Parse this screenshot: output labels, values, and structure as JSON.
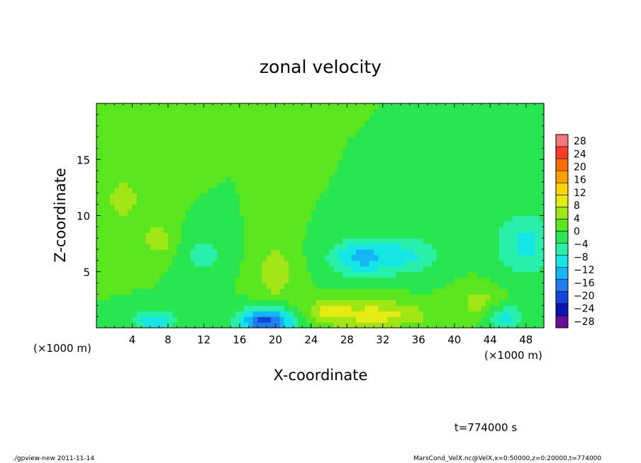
{
  "chart_data": {
    "type": "heatmap",
    "title": "zonal velocity",
    "xlabel": "X-coordinate",
    "ylabel": "Z-coordinate",
    "xlim": [
      0,
      50
    ],
    "ylim": [
      0,
      20
    ],
    "x_ticks": [
      4,
      8,
      12,
      16,
      20,
      24,
      28,
      32,
      36,
      40,
      44,
      48
    ],
    "y_ticks": [
      5,
      10,
      15
    ],
    "x_unit_left": "(×1000 m)",
    "x_unit_right": "(×1000 m)",
    "colorbar": {
      "levels": [
        -30,
        -26,
        -22,
        -18,
        -14,
        -10,
        -6,
        -2,
        2,
        6,
        10,
        14,
        18,
        22,
        26,
        30
      ],
      "colors": [
        "#6a0d9a",
        "#0a14b4",
        "#1446dc",
        "#1e7ef0",
        "#14b4f5",
        "#14e6e6",
        "#28f0aa",
        "#28e650",
        "#5ae61e",
        "#a0e614",
        "#e6eb14",
        "#ffd200",
        "#ffa000",
        "#ff6e00",
        "#ff3c28",
        "#f07878"
      ],
      "labels": [
        "28",
        "24",
        "20",
        "16",
        "12",
        "8",
        "4",
        "0",
        "−4",
        "−8",
        "−12",
        "−16",
        "−20",
        "−24",
        "−28"
      ],
      "label_values": [
        28,
        24,
        20,
        16,
        12,
        8,
        4,
        0,
        -4,
        -8,
        -12,
        -16,
        -20,
        -24,
        -28
      ]
    },
    "field": {
      "background": 2,
      "features": [
        {
          "x": 19,
          "z": 0.6,
          "sx": 3.0,
          "sz": 1.2,
          "v": -22
        },
        {
          "x": 6.5,
          "z": 0.6,
          "sx": 2.2,
          "sz": 1.0,
          "v": -12
        },
        {
          "x": 45.5,
          "z": 1.0,
          "sx": 2.2,
          "sz": 1.1,
          "v": -10
        },
        {
          "x": 29.5,
          "z": 6.3,
          "sx": 3.5,
          "sz": 1.6,
          "v": -13
        },
        {
          "x": 35,
          "z": 6.5,
          "sx": 3.5,
          "sz": 1.8,
          "v": -8
        },
        {
          "x": 48,
          "z": 7.5,
          "sx": 3.5,
          "sz": 3.0,
          "v": -9
        },
        {
          "x": 12,
          "z": 6.5,
          "sx": 2.5,
          "sz": 1.8,
          "v": -6
        },
        {
          "x": 31,
          "z": 1.2,
          "sx": 6.0,
          "sz": 1.2,
          "v": 10
        },
        {
          "x": 20,
          "z": 5.0,
          "sx": 2.2,
          "sz": 2.5,
          "v": 7
        },
        {
          "x": 7,
          "z": 7.8,
          "sx": 1.8,
          "sz": 1.5,
          "v": 6
        },
        {
          "x": 3,
          "z": 11.5,
          "sx": 3.0,
          "sz": 3.0,
          "v": 5
        },
        {
          "x": 43,
          "z": 2.2,
          "sx": 2.5,
          "sz": 1.5,
          "v": 6
        },
        {
          "x": 26,
          "z": 1.6,
          "sx": 2.0,
          "sz": 1.0,
          "v": 6
        }
      ]
    }
  },
  "time_label": "t=774000 s",
  "footer_left": "./gpview-new  2011-11-14",
  "footer_right": "MarsCond_VelX.nc@VelX,x=0:50000,z=0:20000,t=774000"
}
